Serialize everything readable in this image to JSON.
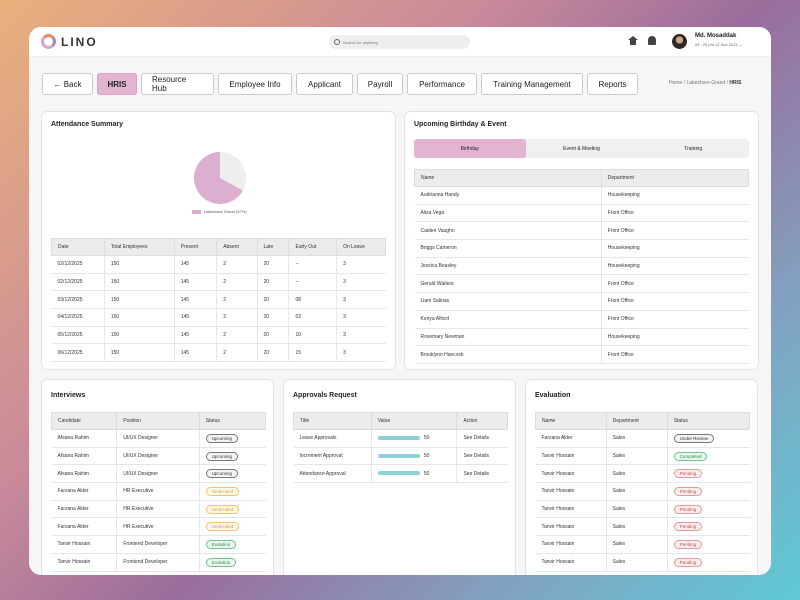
{
  "topbar": {
    "logo": "LINO",
    "search_placeholder": "Search for anything",
    "user_name": "Md. Mosaddak",
    "user_meta": "03 : 25 pm  12 Nov 2024  ⌄"
  },
  "tabs": [
    {
      "label": "← Back"
    },
    {
      "label": "HRIS"
    },
    {
      "label": "Resource Hub"
    },
    {
      "label": "Employee Info"
    },
    {
      "label": "Applicant"
    },
    {
      "label": "Payroll"
    },
    {
      "label": "Performance"
    },
    {
      "label": "Training Management"
    },
    {
      "label": "Reports"
    }
  ],
  "breadcrumb": {
    "home": "Home",
    "section": "Lakeshore Grand",
    "current": "HRIS"
  },
  "attendance": {
    "title": "Attendance Summary",
    "legend": "Lakeshore Grand (67%)",
    "chart_data": {
      "type": "pie",
      "slices": [
        {
          "label": "Lakeshore Grand",
          "value": 67
        }
      ],
      "colors": [
        "#dcaed0",
        "#eeeeee"
      ]
    },
    "headers": [
      "Date",
      "Total Employees",
      "Present",
      "Absent",
      "Late",
      "Early Out",
      "On Leave"
    ],
    "rows": [
      [
        "02/12/2025",
        "150",
        "145",
        "2",
        "20",
        "--",
        "3"
      ],
      [
        "02/12/2025",
        "150",
        "145",
        "2",
        "20",
        "--",
        "3"
      ],
      [
        "03/12/2025",
        "150",
        "145",
        "2",
        "20",
        "08",
        "3"
      ],
      [
        "04/12/2025",
        "150",
        "145",
        "2",
        "20",
        "02",
        "3"
      ],
      [
        "05/12/2025",
        "150",
        "145",
        "2",
        "20",
        "10",
        "3"
      ],
      [
        "06/12/2025",
        "150",
        "145",
        "2",
        "20",
        "15",
        "3"
      ]
    ]
  },
  "birthday": {
    "title": "Upcoming Birthday & Event",
    "segments": [
      "Birthday",
      "Event & Meeting",
      "Training"
    ],
    "headers": [
      "Name",
      "Department"
    ],
    "rows": [
      [
        "Audrianna Handy",
        "Housekeeping"
      ],
      [
        "Aliza Vega",
        "Front Office"
      ],
      [
        "Caiden Vaughn",
        "Front Office"
      ],
      [
        "Briggs Cameron",
        "Housekeeping"
      ],
      [
        "Jessica Beasley",
        "Housekeeping"
      ],
      [
        "Gerald Walters",
        "Front Office"
      ],
      [
        "Liam Salinas",
        "Front Office"
      ],
      [
        "Kenya Alford",
        "Front Office"
      ],
      [
        "Rosemary Newman",
        "Housekeeping"
      ],
      [
        "Brooklynn Hancock",
        "Front Office"
      ]
    ]
  },
  "interviews": {
    "title": "Interviews",
    "headers": [
      "Candidate",
      "Position",
      "Status"
    ],
    "rows": [
      [
        "Afsana Rahim",
        "UI/UX Designer",
        "Upcoming",
        "upcoming"
      ],
      [
        "Afsana Rahim",
        "UI/UX Designer",
        "Upcoming",
        "upcoming"
      ],
      [
        "Afsana Rahim",
        "UI/UX Designer",
        "Upcoming",
        "upcoming"
      ],
      [
        "Farzana Akter",
        "HR Executive",
        "Undecided",
        "undecided"
      ],
      [
        "Farzana Akter",
        "HR Executive",
        "Undecided",
        "undecided"
      ],
      [
        "Farzana Akter",
        "HR Executive",
        "Undecided",
        "undecided"
      ],
      [
        "Tanvir Hossain",
        "Frontend Developer",
        "Evolution",
        "evolution"
      ],
      [
        "Tanvir Hossain",
        "Frontend Developer",
        "Evolution",
        "evolution"
      ]
    ]
  },
  "approvals": {
    "title": "Approvals Request",
    "headers": [
      "Title",
      "Value",
      "Action"
    ],
    "rows": [
      [
        "Leave Approvals",
        "50",
        "See Details"
      ],
      [
        "Increment Approval",
        "50",
        "See Details"
      ],
      [
        "Attendance Approval",
        "50",
        "See Details"
      ]
    ]
  },
  "evaluation": {
    "title": "Evaluation",
    "headers": [
      "Name",
      "Department",
      "Status"
    ],
    "rows": [
      [
        "Farzana Akter",
        "Sales",
        "Under Review",
        "review"
      ],
      [
        "Tanvir Hossain",
        "Sales",
        "Completed",
        "completed"
      ],
      [
        "Tanvir Hossain",
        "Sales",
        "Pending",
        "pending"
      ],
      [
        "Tanvir Hossain",
        "Sales",
        "Pending",
        "pending"
      ],
      [
        "Tanvir Hossain",
        "Sales",
        "Pending",
        "pending"
      ],
      [
        "Tanvir Hossain",
        "Sales",
        "Pending",
        "pending"
      ],
      [
        "Tanvir Hossain",
        "Sales",
        "Pending",
        "pending"
      ],
      [
        "Tanvir Hossain",
        "Sales",
        "Pending",
        "pending"
      ]
    ]
  }
}
